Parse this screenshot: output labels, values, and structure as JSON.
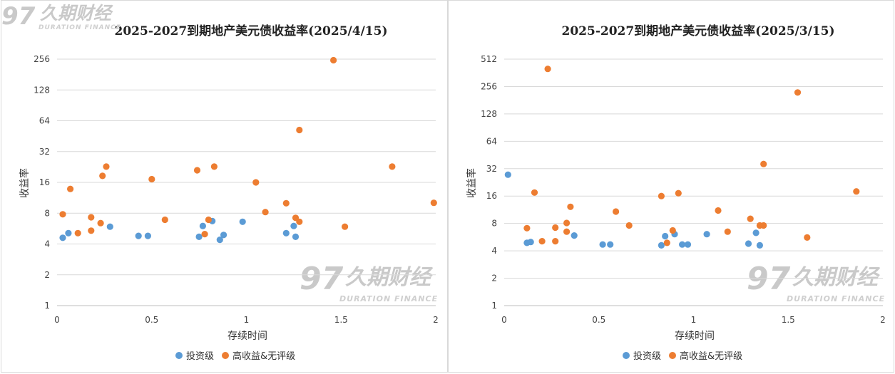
{
  "colors": {
    "invest": "#5b9bd5",
    "high": "#ed7d31",
    "grid": "#d9d9d9",
    "watermark": "#c9c9c9"
  },
  "watermark": {
    "cn": "久期财经",
    "en": "DURATION FINANCE"
  },
  "chart_data": [
    {
      "type": "scatter",
      "title": "2025-2027到期地产美元债收益率(2025/4/15)",
      "xlabel": "存续时间",
      "ylabel": "收益率",
      "yscale": "log2",
      "xlim": [
        0,
        2
      ],
      "ylim": [
        1,
        256
      ],
      "xticks": [
        "0",
        "0.5",
        "1",
        "1.5",
        "2"
      ],
      "yticks": [
        "1",
        "2",
        "4",
        "8",
        "16",
        "32",
        "64",
        "128",
        "256"
      ],
      "legend_position": "bottom",
      "series": [
        {
          "name": "投资级",
          "color_key": "invest",
          "points": [
            [
              0.03,
              4.6
            ],
            [
              0.06,
              5.1
            ],
            [
              0.28,
              5.9
            ],
            [
              0.43,
              4.8
            ],
            [
              0.48,
              4.8
            ],
            [
              0.75,
              4.7
            ],
            [
              0.77,
              6.0
            ],
            [
              0.82,
              6.7
            ],
            [
              0.86,
              4.4
            ],
            [
              0.88,
              4.9
            ],
            [
              0.98,
              6.6
            ],
            [
              1.21,
              5.1
            ],
            [
              1.25,
              6.0
            ],
            [
              1.26,
              4.7
            ]
          ]
        },
        {
          "name": "高收益&无评级",
          "color_key": "high",
          "points": [
            [
              0.03,
              7.8
            ],
            [
              0.07,
              13.8
            ],
            [
              0.11,
              5.1
            ],
            [
              0.18,
              7.3
            ],
            [
              0.18,
              5.4
            ],
            [
              0.23,
              6.4
            ],
            [
              0.24,
              18.5
            ],
            [
              0.26,
              22.8
            ],
            [
              0.5,
              17.2
            ],
            [
              0.57,
              6.9
            ],
            [
              0.74,
              21.0
            ],
            [
              0.78,
              5.0
            ],
            [
              0.8,
              6.9
            ],
            [
              0.83,
              22.8
            ],
            [
              1.05,
              16.0
            ],
            [
              1.1,
              8.2
            ],
            [
              1.21,
              10.0
            ],
            [
              1.26,
              7.2
            ],
            [
              1.28,
              52
            ],
            [
              1.28,
              6.6
            ],
            [
              1.46,
              250
            ],
            [
              1.52,
              5.9
            ],
            [
              1.77,
              22.8
            ],
            [
              1.99,
              10.1
            ]
          ]
        }
      ]
    },
    {
      "type": "scatter",
      "title": "2025-2027到期地产美元债收益率(2025/3/15)",
      "xlabel": "存续时间",
      "ylabel": "收益率",
      "yscale": "log2",
      "xlim": [
        0,
        2
      ],
      "ylim": [
        1,
        512
      ],
      "xticks": [
        "0",
        "0.5",
        "1",
        "1.5",
        "2"
      ],
      "yticks": [
        "1",
        "2",
        "4",
        "8",
        "16",
        "32",
        "64",
        "128",
        "256",
        "512"
      ],
      "legend_position": "bottom",
      "series": [
        {
          "name": "投资级",
          "color_key": "invest",
          "points": [
            [
              0.02,
              27.5
            ],
            [
              0.12,
              4.9
            ],
            [
              0.14,
              5.0
            ],
            [
              0.37,
              5.9
            ],
            [
              0.52,
              4.7
            ],
            [
              0.56,
              4.7
            ],
            [
              0.83,
              4.6
            ],
            [
              0.85,
              5.8
            ],
            [
              0.9,
              6.1
            ],
            [
              0.94,
              4.7
            ],
            [
              0.97,
              4.7
            ],
            [
              1.07,
              6.1
            ],
            [
              1.29,
              4.8
            ],
            [
              1.33,
              6.3
            ],
            [
              1.35,
              4.6
            ]
          ]
        },
        {
          "name": "高收益&无评级",
          "color_key": "high",
          "points": [
            [
              0.12,
              7.1
            ],
            [
              0.16,
              17.5
            ],
            [
              0.2,
              5.1
            ],
            [
              0.27,
              7.2
            ],
            [
              0.27,
              5.1
            ],
            [
              0.33,
              8.1
            ],
            [
              0.33,
              6.5
            ],
            [
              0.35,
              12.2
            ],
            [
              0.59,
              10.8
            ],
            [
              0.66,
              7.6
            ],
            [
              0.83,
              16.0
            ],
            [
              0.86,
              4.9
            ],
            [
              0.89,
              6.7
            ],
            [
              0.92,
              17.2
            ],
            [
              1.13,
              11.1
            ],
            [
              1.18,
              6.5
            ],
            [
              1.3,
              9.0
            ],
            [
              1.35,
              7.6
            ],
            [
              1.37,
              7.6
            ],
            [
              1.37,
              36
            ],
            [
              0.23,
              400
            ],
            [
              1.55,
              220
            ],
            [
              1.6,
              5.6
            ],
            [
              1.86,
              18.0
            ]
          ]
        }
      ]
    }
  ]
}
